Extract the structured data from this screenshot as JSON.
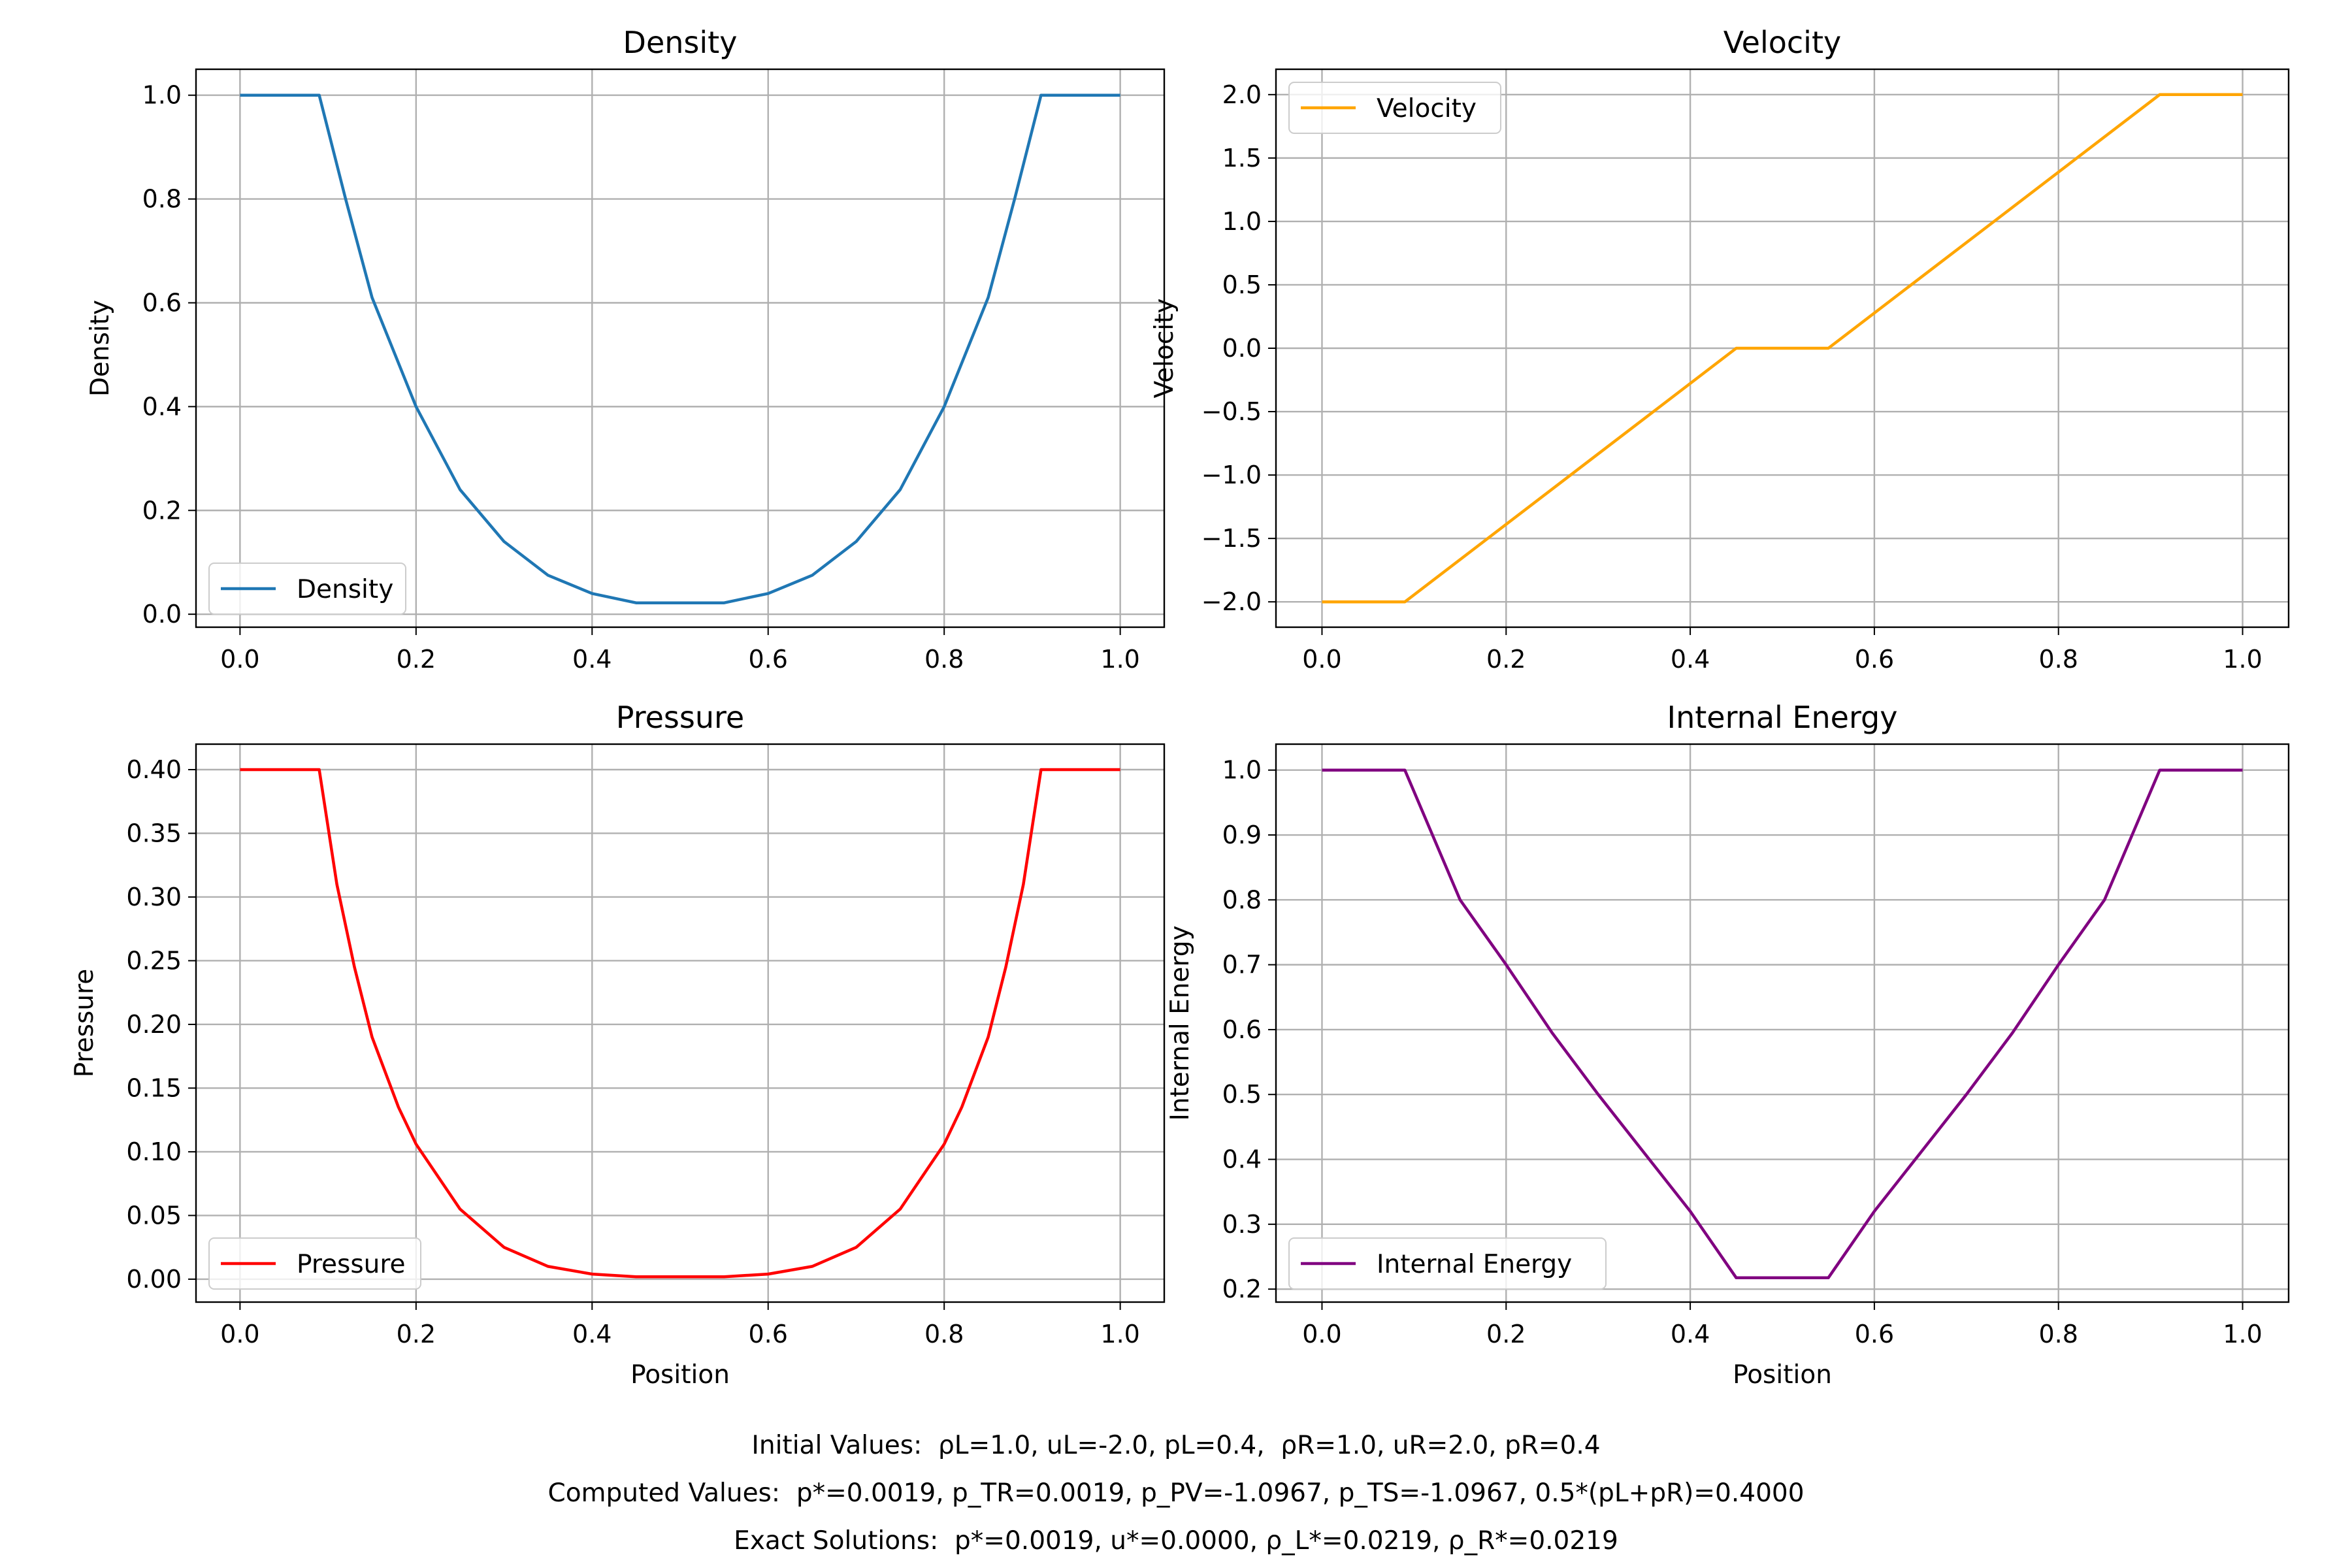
{
  "chart_data": [
    {
      "type": "line",
      "title": "Density",
      "xlabel": "",
      "ylabel": "Density",
      "xlim": [
        -0.05,
        1.05
      ],
      "ylim": [
        -0.025,
        1.05
      ],
      "xticks": [
        "0.0",
        "0.2",
        "0.4",
        "0.6",
        "0.8",
        "1.0"
      ],
      "yticks": [
        "0.0",
        "0.2",
        "0.4",
        "0.6",
        "0.8",
        "1.0"
      ],
      "grid": true,
      "legend": "lower-left",
      "color": "#1f77b4",
      "series": [
        {
          "name": "Density",
          "x": [
            0.0,
            0.09,
            0.12,
            0.15,
            0.2,
            0.25,
            0.3,
            0.35,
            0.4,
            0.45,
            0.55,
            0.6,
            0.65,
            0.7,
            0.75,
            0.8,
            0.85,
            0.88,
            0.91,
            1.0
          ],
          "values": [
            1.0,
            1.0,
            0.8,
            0.61,
            0.4,
            0.24,
            0.14,
            0.075,
            0.04,
            0.0219,
            0.0219,
            0.04,
            0.075,
            0.14,
            0.24,
            0.4,
            0.61,
            0.8,
            1.0,
            1.0
          ]
        }
      ]
    },
    {
      "type": "line",
      "title": "Velocity",
      "xlabel": "",
      "ylabel": "Velocity",
      "xlim": [
        -0.05,
        1.05
      ],
      "ylim": [
        -2.2,
        2.2
      ],
      "xticks": [
        "0.0",
        "0.2",
        "0.4",
        "0.6",
        "0.8",
        "1.0"
      ],
      "yticks": [
        "−2.0",
        "−1.5",
        "−1.0",
        "−0.5",
        "0.0",
        "0.5",
        "1.0",
        "1.5",
        "2.0"
      ],
      "grid": true,
      "legend": "upper-left",
      "color": "#ffa500",
      "series": [
        {
          "name": "Velocity",
          "x": [
            0.0,
            0.09,
            0.45,
            0.55,
            0.91,
            1.0
          ],
          "values": [
            -2.0,
            -2.0,
            0.0,
            0.0,
            2.0,
            2.0
          ]
        }
      ]
    },
    {
      "type": "line",
      "title": "Pressure",
      "xlabel": "Position",
      "ylabel": "Pressure",
      "xlim": [
        -0.05,
        1.05
      ],
      "ylim": [
        -0.018,
        0.42
      ],
      "xticks": [
        "0.0",
        "0.2",
        "0.4",
        "0.6",
        "0.8",
        "1.0"
      ],
      "yticks": [
        "0.00",
        "0.05",
        "0.10",
        "0.15",
        "0.20",
        "0.25",
        "0.30",
        "0.35",
        "0.40"
      ],
      "grid": true,
      "legend": "lower-left",
      "color": "#ff0000",
      "series": [
        {
          "name": "Pressure",
          "x": [
            0.0,
            0.09,
            0.11,
            0.13,
            0.15,
            0.18,
            0.2,
            0.25,
            0.3,
            0.35,
            0.4,
            0.45,
            0.55,
            0.6,
            0.65,
            0.7,
            0.75,
            0.8,
            0.82,
            0.85,
            0.87,
            0.89,
            0.91,
            1.0
          ],
          "values": [
            0.4,
            0.4,
            0.31,
            0.245,
            0.19,
            0.135,
            0.106,
            0.055,
            0.025,
            0.01,
            0.004,
            0.0019,
            0.0019,
            0.004,
            0.01,
            0.025,
            0.055,
            0.106,
            0.135,
            0.19,
            0.245,
            0.31,
            0.4,
            0.4
          ]
        }
      ]
    },
    {
      "type": "line",
      "title": "Internal Energy",
      "xlabel": "Position",
      "ylabel": "Internal Energy",
      "xlim": [
        -0.05,
        1.05
      ],
      "ylim": [
        0.18,
        1.04
      ],
      "xticks": [
        "0.0",
        "0.2",
        "0.4",
        "0.6",
        "0.8",
        "1.0"
      ],
      "yticks": [
        "0.2",
        "0.3",
        "0.4",
        "0.5",
        "0.6",
        "0.7",
        "0.8",
        "0.9",
        "1.0"
      ],
      "grid": true,
      "legend": "lower-left",
      "color": "#800080",
      "series": [
        {
          "name": "Internal Energy",
          "x": [
            0.0,
            0.09,
            0.15,
            0.2,
            0.25,
            0.3,
            0.35,
            0.4,
            0.45,
            0.55,
            0.6,
            0.65,
            0.7,
            0.75,
            0.8,
            0.85,
            0.91,
            1.0
          ],
          "values": [
            1.0,
            1.0,
            0.8,
            0.7,
            0.595,
            0.5,
            0.41,
            0.32,
            0.2175,
            0.2175,
            0.32,
            0.41,
            0.5,
            0.595,
            0.7,
            0.8,
            1.0,
            1.0
          ]
        }
      ]
    }
  ],
  "footer": {
    "initial_values": "Initial Values:  ρL=1.0, uL=-2.0, pL=0.4,  ρR=1.0, uR=2.0, pR=0.4",
    "computed_values": "Computed Values:  p*=0.0019, p_TR=0.0019, p_PV=-1.0967, p_TS=-1.0967, 0.5*(pL+pR)=0.4000",
    "exact_solutions": "Exact Solutions:  p*=0.0019, u*=0.0000, ρ_L*=0.0219, ρ_R*=0.0219"
  }
}
